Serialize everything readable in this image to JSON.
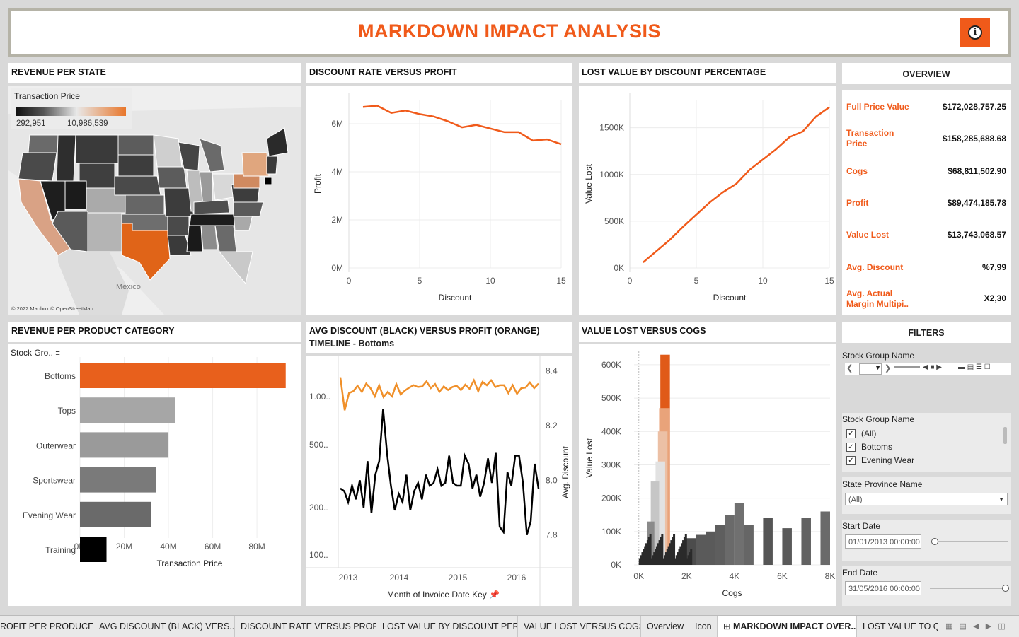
{
  "header": {
    "title": "MARKDOWN IMPACT ANALYSIS",
    "info_icon": "info-icon"
  },
  "map": {
    "title": "REVENUE PER STATE",
    "legend_title": "Transaction Price",
    "legend_min": "292,951",
    "legend_max": "10,986,539",
    "legend_colors": [
      "#1a1a1a",
      "#f0f0f0",
      "#e86a1c"
    ],
    "mexico_label": "Mexico",
    "credit": "© 2022 Mapbox © OpenStreetMap"
  },
  "discount_profit": {
    "title": "DISCOUNT RATE VERSUS PROFIT",
    "chart_data": {
      "type": "line",
      "xlabel": "Discount",
      "ylabel": "Profit",
      "xlim": [
        0,
        15
      ],
      "ylim": [
        0,
        7000000
      ],
      "x_ticks": [
        "0",
        "5",
        "10",
        "15"
      ],
      "y_ticks": [
        "0M",
        "2M",
        "4M",
        "6M"
      ],
      "x": [
        1,
        2,
        3,
        4,
        5,
        6,
        7,
        8,
        9,
        10,
        11,
        12,
        13,
        14,
        15
      ],
      "values": [
        6700000,
        6750000,
        6450000,
        6550000,
        6400000,
        6300000,
        6100000,
        5850000,
        5950000,
        5800000,
        5650000,
        5650000,
        5300000,
        5350000,
        5150000
      ],
      "color": "#f05a1a"
    }
  },
  "lost_value": {
    "title": "LOST VALUE BY DISCOUNT PERCENTAGE",
    "chart_data": {
      "type": "line",
      "xlabel": "Discount",
      "ylabel": "Value Lost",
      "xlim": [
        0,
        15
      ],
      "ylim": [
        0,
        1800000
      ],
      "x_ticks": [
        "0",
        "5",
        "10",
        "15"
      ],
      "y_ticks": [
        "0K",
        "500K",
        "1000K",
        "1500K"
      ],
      "x": [
        1,
        2,
        3,
        4,
        5,
        6,
        7,
        8,
        9,
        10,
        11,
        12,
        13,
        14,
        15
      ],
      "values": [
        60000,
        180000,
        300000,
        440000,
        570000,
        700000,
        810000,
        900000,
        1050000,
        1160000,
        1270000,
        1400000,
        1460000,
        1620000,
        1720000
      ],
      "color": "#f05a1a"
    }
  },
  "overview": {
    "title": "OVERVIEW",
    "rows": [
      {
        "label": "Full Price Value",
        "value": "$172,028,757.25"
      },
      {
        "label": "Transaction Price",
        "value": "$158,285,688.68"
      },
      {
        "label": "Cogs",
        "value": "$68,811,502.90"
      },
      {
        "label": "Profit",
        "value": "$89,474,185.78"
      },
      {
        "label": "Value Lost",
        "value": "$13,743,068.57"
      },
      {
        "label": "Avg. Discount",
        "value": "%7,99"
      },
      {
        "label": "Avg. Actual Margin Multipi..",
        "value": "X2,30"
      }
    ]
  },
  "category": {
    "title": "REVENUE PER PRODUCT CATEGORY",
    "header_label": "Stock Gro..",
    "chart_data": {
      "type": "bar",
      "orientation": "horizontal",
      "categories": [
        "Bottoms",
        "Tops",
        "Outerwear",
        "Sportswear",
        "Evening Wear",
        "Training"
      ],
      "values": [
        93000000,
        43000000,
        40000000,
        34500000,
        32000000,
        12000000
      ],
      "colors": [
        "#e8601c",
        "#a6a6a6",
        "#9a9a9a",
        "#7a7a7a",
        "#6a6a6a",
        "#000000"
      ],
      "xlabel": "Transaction Price",
      "x_ticks": [
        "0M",
        "20M",
        "40M",
        "60M",
        "80M"
      ],
      "xlim": [
        0,
        95000000
      ]
    }
  },
  "timeline": {
    "title": "AVG DISCOUNT (BLACK) VERSUS PROFIT (ORANGE)",
    "subtitle": "TIMELINE - Bottoms",
    "xlabel": "Month of Invoice Date Key",
    "pin_icon": "pin-icon",
    "chart_data": {
      "type": "line",
      "x_ticks": [
        "2013",
        "2014",
        "2015",
        "2016"
      ],
      "left_ticks": [
        "1.00..",
        "500..",
        "200..",
        "100.."
      ],
      "right_ticks": [
        "8.4",
        "8.2",
        "8.0",
        "7.8"
      ],
      "right_label": "Avg. Discount",
      "right_lim": [
        7.68,
        8.43
      ],
      "left_lim": [
        90000,
        1700000
      ],
      "series": [
        {
          "values": [
            1380000,
            860000,
            1100000,
            1130000,
            1220000,
            1120000,
            1260000,
            1180000,
            1050000,
            1230000,
            1040000,
            1120000,
            1050000,
            1250000,
            1080000,
            1140000,
            1190000,
            1230000,
            1200000,
            1210000,
            1300000,
            1180000,
            1250000,
            1120000,
            1210000,
            1150000,
            1200000,
            1220000,
            1150000,
            1240000,
            1170000,
            1320000,
            1130000,
            1290000,
            1230000,
            1320000,
            1200000,
            1230000,
            1230000,
            1100000,
            1230000,
            1090000,
            1180000,
            1190000,
            1280000,
            1180000,
            1260000
          ],
          "color": "#f0902a"
        },
        {
          "values": [
            7.97,
            7.96,
            7.92,
            7.98,
            7.93,
            8.0,
            7.9,
            8.07,
            7.88,
            8.02,
            8.07,
            8.26,
            8.1,
            7.98,
            7.89,
            7.95,
            7.92,
            8.02,
            7.89,
            7.96,
            7.99,
            7.93,
            8.02,
            7.98,
            7.99,
            8.04,
            7.98,
            7.99,
            8.09,
            7.99,
            7.98,
            7.98,
            8.09,
            8.06,
            7.97,
            8.02,
            7.94,
            7.99,
            8.08,
            7.99,
            8.1,
            7.83,
            7.81,
            8.03,
            7.98,
            8.09,
            8.09,
            7.99,
            7.8,
            7.85,
            8.06,
            7.97
          ],
          "color": "#000000"
        }
      ]
    }
  },
  "cogs": {
    "title": "VALUE LOST VERSUS COGS",
    "chart_data": {
      "type": "bar",
      "xlabel": "Cogs",
      "ylabel": "Value Lost",
      "x_ticks": [
        "0K",
        "2K",
        "4K",
        "6K",
        "8K"
      ],
      "y_ticks": [
        "0K",
        "100K",
        "200K",
        "300K",
        "400K",
        "500K",
        "600K"
      ],
      "xlim": [
        -200,
        8000
      ],
      "ylim": [
        0,
        640000
      ],
      "bars": [
        {
          "x": 900,
          "w": 400,
          "y": 630000,
          "c": "#e05a18"
        },
        {
          "x": 850,
          "w": 450,
          "y": 470000,
          "c": "#e9a37a"
        },
        {
          "x": 800,
          "w": 400,
          "y": 400000,
          "c": "#ecc0a5"
        },
        {
          "x": 700,
          "w": 400,
          "y": 310000,
          "c": "#e2e2e2"
        },
        {
          "x": 500,
          "w": 350,
          "y": 250000,
          "c": "#c6c6c6"
        },
        {
          "x": 350,
          "w": 300,
          "y": 130000,
          "c": "#8a8a8a"
        },
        {
          "x": 2000,
          "w": 400,
          "y": 80000,
          "c": "#4c4c4c"
        },
        {
          "x": 2400,
          "w": 400,
          "y": 90000,
          "c": "#5a5a5a"
        },
        {
          "x": 2800,
          "w": 400,
          "y": 100000,
          "c": "#5a5a5a"
        },
        {
          "x": 3200,
          "w": 400,
          "y": 120000,
          "c": "#5e5e5e"
        },
        {
          "x": 3600,
          "w": 400,
          "y": 150000,
          "c": "#6a6a6a"
        },
        {
          "x": 4000,
          "w": 400,
          "y": 185000,
          "c": "#707070"
        },
        {
          "x": 4400,
          "w": 400,
          "y": 120000,
          "c": "#666666"
        },
        {
          "x": 5200,
          "w": 400,
          "y": 140000,
          "c": "#555555"
        },
        {
          "x": 6000,
          "w": 400,
          "y": 110000,
          "c": "#5a5a5a"
        },
        {
          "x": 6800,
          "w": 400,
          "y": 140000,
          "c": "#626262"
        },
        {
          "x": 7600,
          "w": 400,
          "y": 160000,
          "c": "#6a6a6a"
        }
      ]
    }
  },
  "filters": {
    "title": "FILTERS",
    "stock_group_label": "Stock Group Name",
    "stock_group_label2": "Stock Group Name",
    "checklist": [
      "(All)",
      "Bottoms",
      "Evening Wear"
    ],
    "state_label": "State Province Name",
    "state_value": "(All)",
    "start_label": "Start Date",
    "start_value": "01/01/2013 00:00:00",
    "end_label": "End Date",
    "end_value": "31/05/2016 00:00:00"
  },
  "tabs": [
    "ROFIT PER PRODUCER",
    "AVG DISCOUNT (BLACK) VERS...",
    "DISCOUNT RATE VERSUS PROFIT",
    "LOST VALUE BY DISCOUNT PER...",
    "VALUE LOST VERSUS COGS",
    "Overview",
    "Icon",
    "MARKDOWN IMPACT OVER...",
    "LOST VALUE TO Q"
  ]
}
